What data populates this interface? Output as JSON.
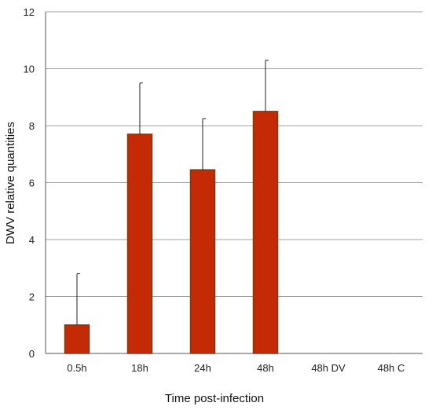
{
  "chart_data": {
    "type": "bar",
    "categories": [
      "0.5h",
      "18h",
      "24h",
      "48h",
      "48h DV",
      "48h C"
    ],
    "values": [
      1.0,
      7.7,
      6.45,
      8.5,
      0,
      0
    ],
    "error_upper": [
      2.8,
      9.5,
      8.25,
      10.3,
      null,
      null
    ],
    "xlabel": "Time post-infection",
    "ylabel": "DWV relative quantities",
    "ylim": [
      0,
      12
    ],
    "yticks": [
      0,
      2,
      4,
      6,
      8,
      10,
      12
    ],
    "grid": "horizontal",
    "legend": "none",
    "colors": {
      "bar_fill": "#c42a06",
      "bar_edge": "#7a3b10",
      "grid": "#a0a0a0",
      "axis": "#555555",
      "error": "#222222"
    }
  }
}
